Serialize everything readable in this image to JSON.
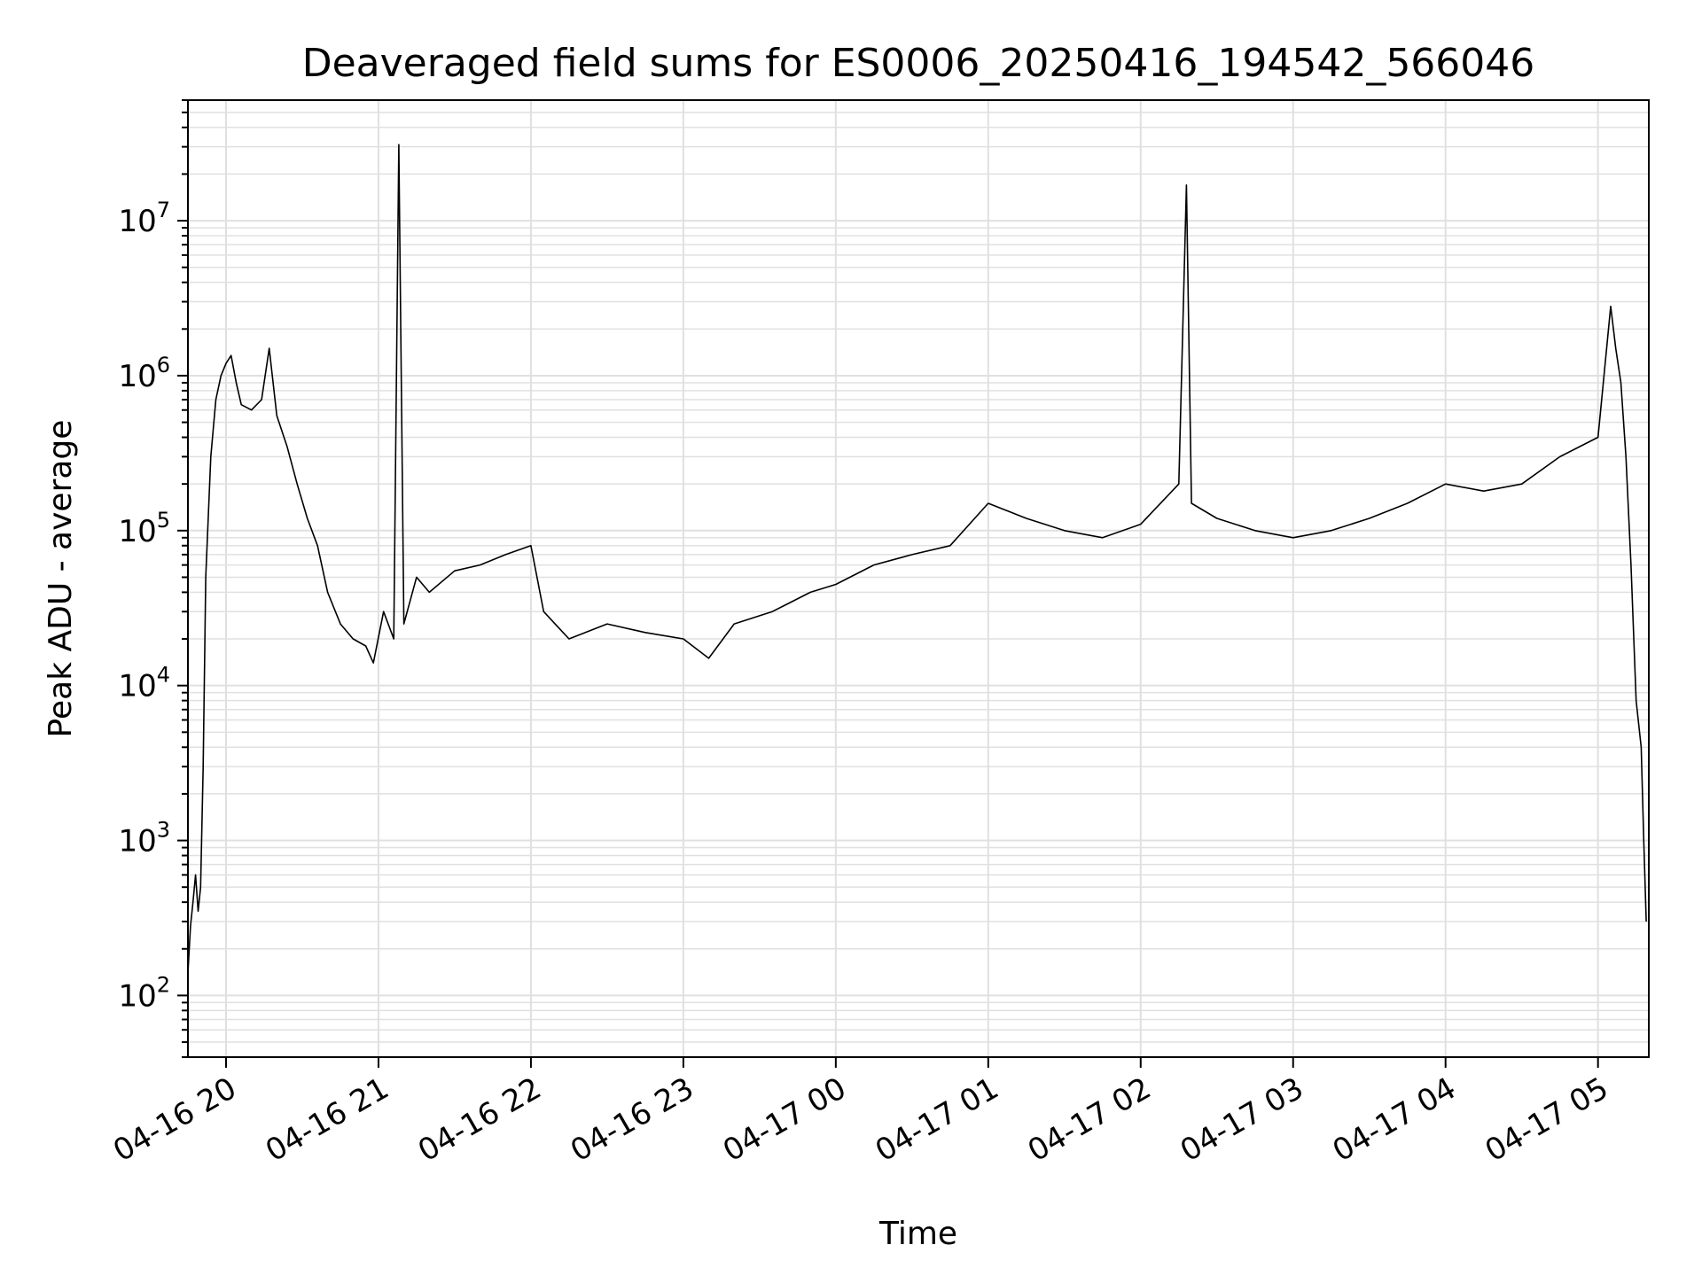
{
  "chart_data": {
    "type": "line",
    "title": "Deaveraged field sums for ES0006_20250416_194542_566046",
    "xlabel": "Time",
    "ylabel": "Peak ADU - average",
    "yscale": "log",
    "ylim": [
      40,
      60000000
    ],
    "xlim": [
      "2025-04-16 19:45",
      "2025-04-17 05:20"
    ],
    "grid": true,
    "line_color": "#000000",
    "grid_color": "#e0e0e0",
    "x_tick_labels": [
      "04-16 20",
      "04-16 21",
      "04-16 22",
      "04-16 23",
      "04-17 00",
      "04-17 01",
      "04-17 02",
      "04-17 03",
      "04-17 04",
      "04-17 05"
    ],
    "y_tick_labels": [
      {
        "base": "10",
        "exp": "2",
        "value": 100
      },
      {
        "base": "10",
        "exp": "3",
        "value": 1000
      },
      {
        "base": "10",
        "exp": "4",
        "value": 10000
      },
      {
        "base": "10",
        "exp": "5",
        "value": 100000
      },
      {
        "base": "10",
        "exp": "6",
        "value": 1000000
      },
      {
        "base": "10",
        "exp": "7",
        "value": 10000000
      }
    ],
    "series": [
      {
        "values": [
          [
            "2025-04-16 19:45",
            140
          ],
          [
            "2025-04-16 19:46",
            280
          ],
          [
            "2025-04-16 19:47",
            400
          ],
          [
            "2025-04-16 19:48",
            600
          ],
          [
            "2025-04-16 19:49",
            350
          ],
          [
            "2025-04-16 19:50",
            500
          ],
          [
            "2025-04-16 19:51",
            3000
          ],
          [
            "2025-04-16 19:52",
            50000
          ],
          [
            "2025-04-16 19:54",
            300000
          ],
          [
            "2025-04-16 19:56",
            700000
          ],
          [
            "2025-04-16 19:58",
            1000000
          ],
          [
            "2025-04-16 20:00",
            1200000
          ],
          [
            "2025-04-16 20:02",
            1350000
          ],
          [
            "2025-04-16 20:04",
            900000
          ],
          [
            "2025-04-16 20:06",
            650000
          ],
          [
            "2025-04-16 20:10",
            600000
          ],
          [
            "2025-04-16 20:14",
            700000
          ],
          [
            "2025-04-16 20:17",
            1500000
          ],
          [
            "2025-04-16 20:20",
            550000
          ],
          [
            "2025-04-16 20:24",
            350000
          ],
          [
            "2025-04-16 20:28",
            200000
          ],
          [
            "2025-04-16 20:32",
            120000
          ],
          [
            "2025-04-16 20:36",
            80000
          ],
          [
            "2025-04-16 20:40",
            40000
          ],
          [
            "2025-04-16 20:45",
            25000
          ],
          [
            "2025-04-16 20:50",
            20000
          ],
          [
            "2025-04-16 20:55",
            18000
          ],
          [
            "2025-04-16 20:58",
            14000
          ],
          [
            "2025-04-16 21:02",
            30000
          ],
          [
            "2025-04-16 21:06",
            20000
          ],
          [
            "2025-04-16 21:08",
            31000000
          ],
          [
            "2025-04-16 21:10",
            25000
          ],
          [
            "2025-04-16 21:15",
            50000
          ],
          [
            "2025-04-16 21:20",
            40000
          ],
          [
            "2025-04-16 21:30",
            55000
          ],
          [
            "2025-04-16 21:40",
            60000
          ],
          [
            "2025-04-16 21:50",
            70000
          ],
          [
            "2025-04-16 22:00",
            80000
          ],
          [
            "2025-04-16 22:05",
            30000
          ],
          [
            "2025-04-16 22:15",
            20000
          ],
          [
            "2025-04-16 22:30",
            25000
          ],
          [
            "2025-04-16 22:45",
            22000
          ],
          [
            "2025-04-16 23:00",
            20000
          ],
          [
            "2025-04-16 23:10",
            15000
          ],
          [
            "2025-04-16 23:20",
            25000
          ],
          [
            "2025-04-16 23:35",
            30000
          ],
          [
            "2025-04-16 23:50",
            40000
          ],
          [
            "2025-04-17 00:00",
            45000
          ],
          [
            "2025-04-17 00:15",
            60000
          ],
          [
            "2025-04-17 00:30",
            70000
          ],
          [
            "2025-04-17 00:45",
            80000
          ],
          [
            "2025-04-17 01:00",
            150000
          ],
          [
            "2025-04-17 01:15",
            120000
          ],
          [
            "2025-04-17 01:30",
            100000
          ],
          [
            "2025-04-17 01:45",
            90000
          ],
          [
            "2025-04-17 02:00",
            110000
          ],
          [
            "2025-04-17 02:15",
            200000
          ],
          [
            "2025-04-17 02:18",
            17000000
          ],
          [
            "2025-04-17 02:20",
            150000
          ],
          [
            "2025-04-17 02:30",
            120000
          ],
          [
            "2025-04-17 02:45",
            100000
          ],
          [
            "2025-04-17 03:00",
            90000
          ],
          [
            "2025-04-17 03:15",
            100000
          ],
          [
            "2025-04-17 03:30",
            120000
          ],
          [
            "2025-04-17 03:45",
            150000
          ],
          [
            "2025-04-17 04:00",
            200000
          ],
          [
            "2025-04-17 04:15",
            180000
          ],
          [
            "2025-04-17 04:30",
            200000
          ],
          [
            "2025-04-17 04:45",
            300000
          ],
          [
            "2025-04-17 05:00",
            400000
          ],
          [
            "2025-04-17 05:05",
            2800000
          ],
          [
            "2025-04-17 05:07",
            1500000
          ],
          [
            "2025-04-17 05:09",
            900000
          ],
          [
            "2025-04-17 05:11",
            300000
          ],
          [
            "2025-04-17 05:13",
            60000
          ],
          [
            "2025-04-17 05:15",
            8000
          ],
          [
            "2025-04-17 05:17",
            4000
          ],
          [
            "2025-04-17 05:18",
            1000
          ],
          [
            "2025-04-17 05:19",
            300
          ]
        ]
      }
    ]
  }
}
